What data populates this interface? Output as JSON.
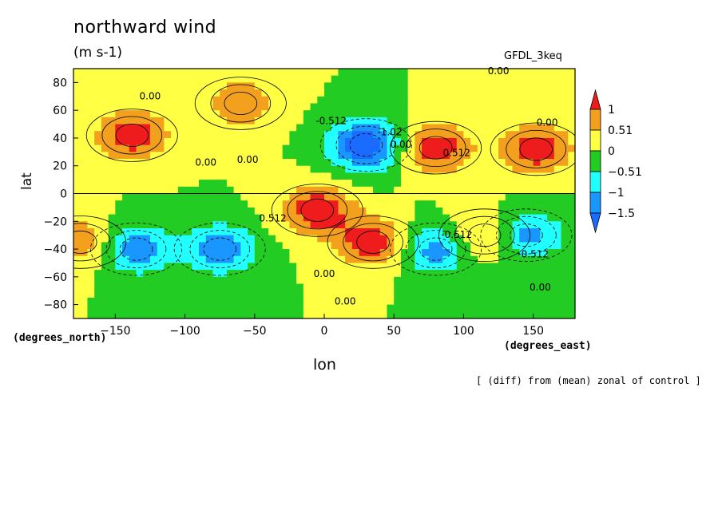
{
  "chart_data": {
    "type": "heatmap",
    "title": "northward wind",
    "units": "(m s-1)",
    "model": "GFDL_3keq",
    "xlabel": "lon",
    "ylabel": "lat",
    "xunits": "(degrees_east)",
    "yunits": "(degrees_north)",
    "footnote": "[ (diff) from (mean) zonal of control ]",
    "xlim": [
      -180,
      180
    ],
    "ylim": [
      -90,
      90
    ],
    "xticks": [
      -150,
      -100,
      -50,
      0,
      50,
      100,
      150
    ],
    "yticks": [
      80,
      60,
      40,
      20,
      0,
      -20,
      -40,
      -60,
      -80
    ],
    "legend": {
      "placement": "right",
      "levels": [
        "1",
        "0.51",
        "0",
        "-0.51",
        "-1",
        "-1.5"
      ],
      "colors": [
        "#ee1c1c",
        "#f2a01d",
        "#ffff44",
        "#22cc22",
        "#22ffff",
        "#1a96ff",
        "#1a6bff"
      ]
    },
    "contour_labels": [
      {
        "text": "0.00",
        "lon": -125,
        "lat": 68
      },
      {
        "text": "0.00",
        "lon": 125,
        "lat": 86
      },
      {
        "text": "0.00",
        "lon": 160,
        "lat": 49
      },
      {
        "text": "-0.512",
        "lon": 5,
        "lat": 50
      },
      {
        "text": "-1.02",
        "lon": 47,
        "lat": 42
      },
      {
        "text": "0.00",
        "lon": -85,
        "lat": 20
      },
      {
        "text": "0.00",
        "lon": -55,
        "lat": 22
      },
      {
        "text": "0.00",
        "lon": 55,
        "lat": 33
      },
      {
        "text": "0.512",
        "lon": 95,
        "lat": 27
      },
      {
        "text": "0.512",
        "lon": -37,
        "lat": -20
      },
      {
        "text": "-0.512",
        "lon": 95,
        "lat": -32
      },
      {
        "text": "-0.512",
        "lon": 150,
        "lat": -46
      },
      {
        "text": "0.00",
        "lon": 0,
        "lat": -60
      },
      {
        "text": "0.00",
        "lon": 15,
        "lat": -80
      },
      {
        "text": "0.00",
        "lon": 155,
        "lat": -70
      }
    ],
    "features": [
      {
        "kind": "max",
        "lon": -138,
        "lat": 42,
        "value": 1.0
      },
      {
        "kind": "max",
        "lon": 80,
        "lat": 33,
        "value": 1.0
      },
      {
        "kind": "max",
        "lon": 35,
        "lat": -35,
        "value": 1.0
      },
      {
        "kind": "max",
        "lon": -5,
        "lat": -12,
        "value": 1.0
      },
      {
        "kind": "min",
        "lon": 30,
        "lat": 35,
        "value": -1.5
      },
      {
        "kind": "min",
        "lon": 80,
        "lat": -40,
        "value": -1.0
      },
      {
        "kind": "min",
        "lon": -135,
        "lat": -40,
        "value": -1.0
      },
      {
        "kind": "min",
        "lon": -75,
        "lat": -40,
        "value": -1.0
      },
      {
        "kind": "min",
        "lon": 145,
        "lat": -30,
        "value": -1.0
      },
      {
        "kind": "max",
        "lon": 152,
        "lat": 32,
        "value": 1.0
      },
      {
        "kind": "max",
        "lon": -60,
        "lat": 65,
        "value": 0.7
      },
      {
        "kind": "max",
        "lon": 115,
        "lat": -30,
        "value": 0.7
      },
      {
        "kind": "max",
        "lon": -175,
        "lat": -35,
        "value": 0.7
      }
    ]
  }
}
